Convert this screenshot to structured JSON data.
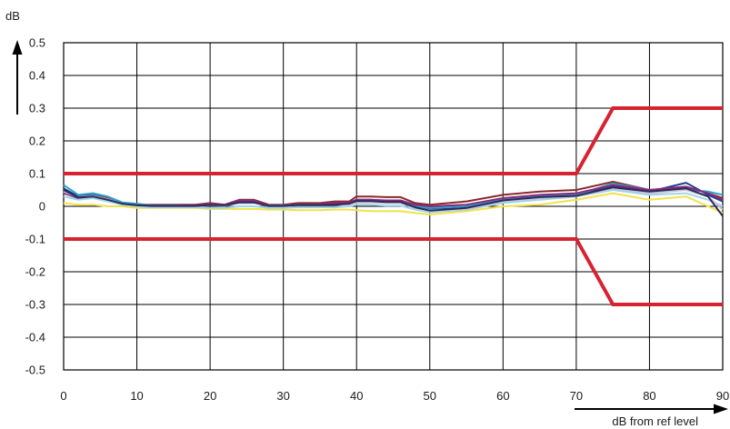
{
  "chart_data": {
    "type": "line",
    "title": "",
    "xlabel": "dB from ref level",
    "ylabel": "dB",
    "xlim": [
      0,
      90
    ],
    "ylim": [
      -0.5,
      0.5
    ],
    "xticks": [
      0,
      10,
      20,
      30,
      40,
      50,
      60,
      70,
      80,
      90
    ],
    "yticks": [
      0.5,
      0.4,
      0.3,
      0.2,
      0.1,
      0,
      -0.1,
      -0.2,
      -0.3,
      -0.4,
      -0.5
    ],
    "xtick_labels": [
      "0",
      "10",
      "20",
      "30",
      "40",
      "50",
      "60",
      "70",
      "80",
      "90"
    ],
    "ytick_labels": [
      "0.5",
      "0.4",
      "0.3",
      "0.2",
      "0.1",
      "0",
      "-0.1",
      "-0.2",
      "-0.3",
      "-0.4",
      "-0.5"
    ],
    "grid": true,
    "limits": [
      {
        "color": "#d7232f",
        "x": [
          0,
          70,
          75,
          90
        ],
        "y": [
          0.1,
          0.1,
          0.3,
          0.3
        ]
      },
      {
        "color": "#d7232f",
        "x": [
          0,
          70,
          75,
          90
        ],
        "y": [
          -0.1,
          -0.1,
          -0.3,
          -0.3
        ]
      }
    ],
    "series": [
      {
        "color": "#8b2a2a",
        "x": [
          0,
          2,
          4,
          6,
          8,
          10,
          12,
          15,
          18,
          20,
          22,
          24,
          26,
          28,
          30,
          32,
          35,
          37,
          39,
          40,
          42,
          44,
          46,
          48,
          50,
          55,
          60,
          65,
          70,
          75,
          80,
          85,
          88,
          90
        ],
        "y": [
          0.05,
          0.03,
          0.035,
          0.025,
          0.01,
          0.005,
          0.005,
          0.005,
          0.005,
          0.01,
          0.005,
          0.02,
          0.02,
          0.005,
          0.005,
          0.01,
          0.01,
          0.015,
          0.015,
          0.03,
          0.03,
          0.028,
          0.028,
          0.01,
          0.005,
          0.015,
          0.035,
          0.045,
          0.05,
          0.075,
          0.05,
          0.06,
          0.04,
          0.025
        ]
      },
      {
        "color": "#1e3f8f",
        "x": [
          0,
          2,
          4,
          6,
          8,
          10,
          12,
          15,
          18,
          20,
          22,
          24,
          26,
          28,
          30,
          32,
          35,
          37,
          39,
          40,
          42,
          44,
          46,
          48,
          50,
          55,
          60,
          65,
          70,
          75,
          80,
          85,
          88,
          90
        ],
        "y": [
          0.055,
          0.03,
          0.035,
          0.02,
          0.01,
          0.005,
          0.0,
          0.0,
          0.0,
          0.005,
          0.005,
          0.015,
          0.015,
          0.0,
          0.0,
          0.005,
          0.005,
          0.005,
          0.01,
          0.02,
          0.02,
          0.015,
          0.015,
          0.0,
          -0.01,
          -0.005,
          0.02,
          0.03,
          0.035,
          0.06,
          0.045,
          0.072,
          0.035,
          0.015
        ]
      },
      {
        "color": "#2aa3c9",
        "x": [
          0,
          2,
          4,
          6,
          8,
          10,
          12,
          15,
          18,
          20,
          22,
          24,
          26,
          28,
          30,
          32,
          35,
          37,
          39,
          40,
          42,
          44,
          46,
          48,
          50,
          55,
          60,
          65,
          70,
          75,
          80,
          85,
          88,
          90
        ],
        "y": [
          0.065,
          0.035,
          0.04,
          0.03,
          0.012,
          0.008,
          0.003,
          0.003,
          0.002,
          0.003,
          0.005,
          0.01,
          0.01,
          0.003,
          0.003,
          0.005,
          0.005,
          0.005,
          0.008,
          0.015,
          0.015,
          0.012,
          0.012,
          0.0,
          -0.005,
          0.0,
          0.02,
          0.03,
          0.035,
          0.07,
          0.05,
          0.05,
          0.045,
          0.035
        ]
      },
      {
        "color": "#8a2a7d",
        "x": [
          0,
          2,
          4,
          6,
          8,
          10,
          12,
          15,
          18,
          20,
          22,
          24,
          26,
          28,
          30,
          32,
          35,
          37,
          39,
          40,
          42,
          44,
          46,
          48,
          50,
          55,
          60,
          65,
          70,
          75,
          80,
          85,
          88,
          90
        ],
        "y": [
          0.04,
          0.025,
          0.03,
          0.02,
          0.008,
          0.004,
          0.002,
          0.002,
          0.003,
          0.008,
          0.005,
          0.018,
          0.018,
          0.002,
          0.002,
          0.005,
          0.008,
          0.01,
          0.012,
          0.02,
          0.02,
          0.018,
          0.018,
          0.005,
          0.0,
          0.005,
          0.025,
          0.035,
          0.04,
          0.065,
          0.05,
          0.06,
          0.04,
          0.02
        ]
      },
      {
        "color": "#f2e24a",
        "x": [
          0,
          2,
          4,
          6,
          8,
          10,
          12,
          15,
          18,
          20,
          22,
          24,
          26,
          28,
          30,
          32,
          35,
          37,
          39,
          40,
          42,
          44,
          46,
          48,
          50,
          55,
          60,
          65,
          70,
          75,
          80,
          85,
          88,
          90
        ],
        "y": [
          0.01,
          0.005,
          0.005,
          0.0,
          0.0,
          -0.005,
          -0.005,
          -0.005,
          -0.005,
          -0.008,
          -0.008,
          -0.008,
          -0.008,
          -0.01,
          -0.01,
          -0.012,
          -0.012,
          -0.01,
          -0.01,
          -0.012,
          -0.015,
          -0.015,
          -0.015,
          -0.02,
          -0.025,
          -0.015,
          0.0,
          0.005,
          0.02,
          0.04,
          0.02,
          0.03,
          0.0,
          -0.02
        ]
      },
      {
        "color": "#9fd6e8",
        "x": [
          0,
          2,
          4,
          6,
          8,
          10,
          12,
          15,
          18,
          20,
          22,
          24,
          26,
          28,
          30,
          32,
          35,
          37,
          39,
          40,
          42,
          44,
          46,
          48,
          50,
          55,
          60,
          65,
          70,
          75,
          80,
          85,
          88,
          90
        ],
        "y": [
          0.03,
          0.02,
          0.025,
          0.015,
          0.005,
          0.0,
          -0.003,
          -0.003,
          -0.003,
          -0.005,
          -0.005,
          0.0,
          0.0,
          -0.005,
          -0.005,
          -0.003,
          -0.003,
          -0.003,
          0.0,
          0.005,
          0.005,
          0.002,
          0.002,
          -0.01,
          -0.018,
          -0.01,
          0.01,
          0.02,
          0.03,
          0.05,
          0.035,
          0.04,
          0.02,
          0.0
        ]
      },
      {
        "color": "#c3c3d6",
        "x": [
          0,
          2,
          4,
          6,
          8,
          10,
          12,
          15,
          18,
          20,
          22,
          24,
          26,
          28,
          30,
          32,
          35,
          37,
          39,
          40,
          42,
          44,
          46,
          48,
          50,
          55,
          60,
          65,
          70,
          75,
          80,
          85,
          88,
          90
        ],
        "y": [
          0.045,
          0.028,
          0.032,
          0.022,
          0.008,
          0.003,
          0.0,
          0.0,
          0.0,
          0.003,
          0.002,
          0.01,
          0.01,
          0.0,
          0.0,
          0.003,
          0.003,
          0.004,
          0.006,
          0.012,
          0.012,
          0.01,
          0.01,
          -0.005,
          -0.012,
          -0.008,
          0.015,
          0.025,
          0.03,
          0.055,
          0.04,
          0.05,
          0.03,
          -0.01
        ]
      },
      {
        "color": "#2b2b5a",
        "x": [
          0,
          2,
          4,
          6,
          8,
          10,
          12,
          15,
          18,
          20,
          22,
          24,
          26,
          28,
          30,
          32,
          35,
          37,
          39,
          40,
          42,
          44,
          46,
          48,
          50,
          55,
          60,
          65,
          70,
          75,
          80,
          85,
          88,
          90
        ],
        "y": [
          0.05,
          0.027,
          0.03,
          0.02,
          0.008,
          0.003,
          0.001,
          0.001,
          0.001,
          0.004,
          0.003,
          0.012,
          0.012,
          0.001,
          0.001,
          0.004,
          0.004,
          0.005,
          0.008,
          0.016,
          0.016,
          0.013,
          0.013,
          -0.003,
          -0.013,
          -0.005,
          0.018,
          0.028,
          0.032,
          0.058,
          0.045,
          0.055,
          0.03,
          -0.03
        ]
      }
    ]
  }
}
